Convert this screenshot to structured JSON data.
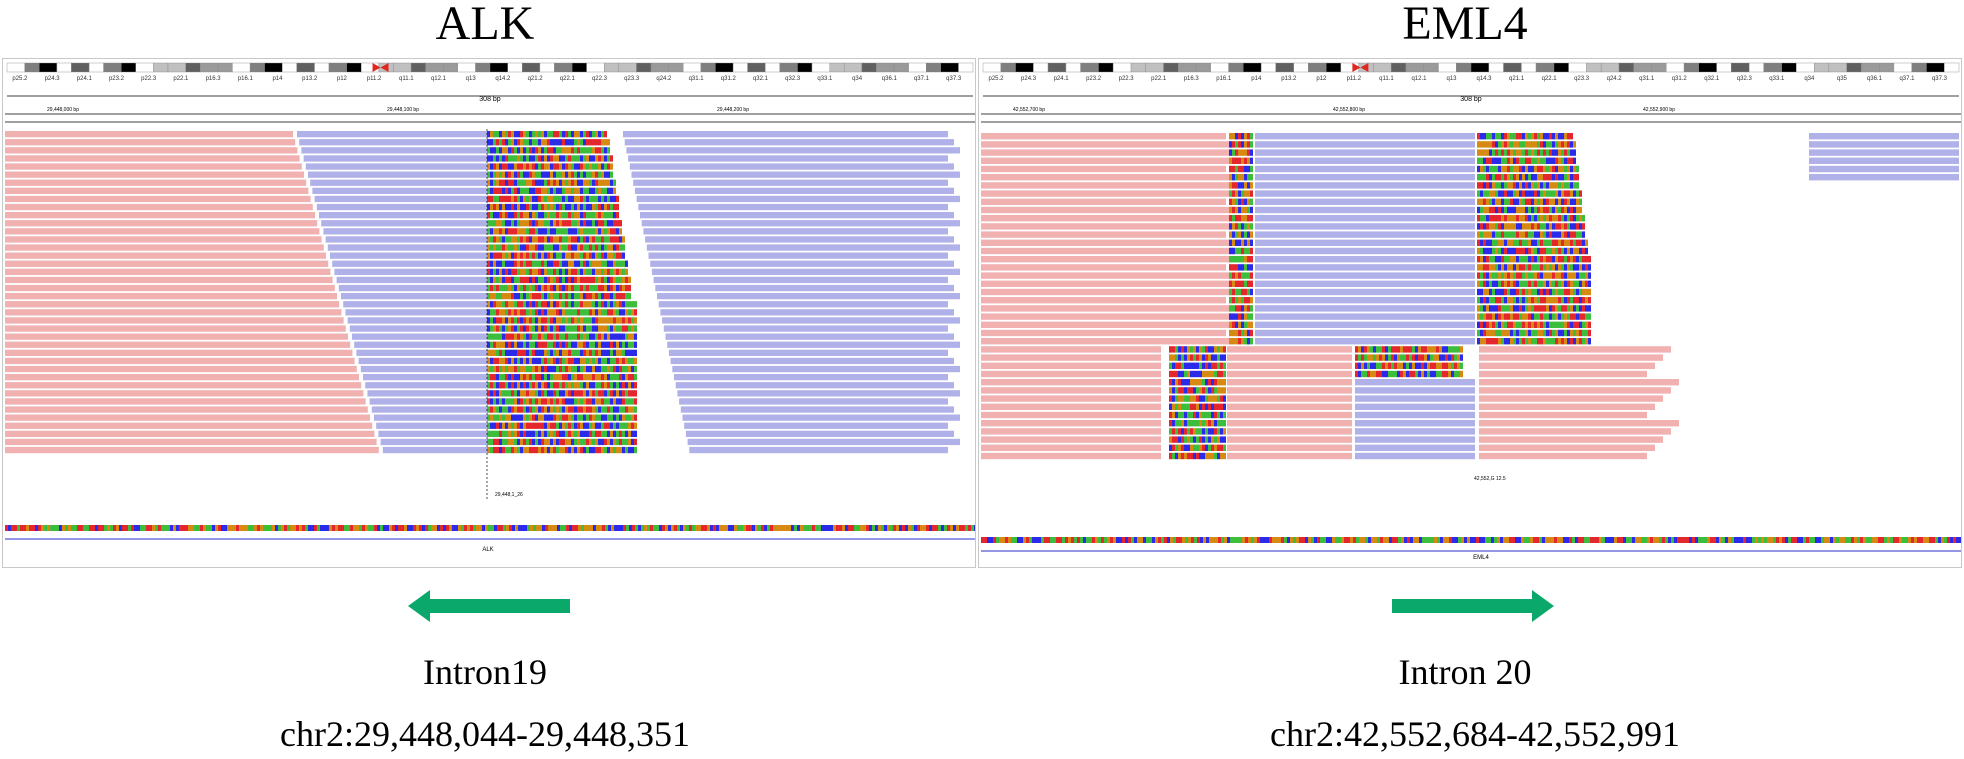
{
  "colors": {
    "forward_read": "#f1b1b1",
    "reverse_read": "#b1b1ea",
    "base_A": "#3cbd3c",
    "base_C": "#2a2ae8",
    "base_G": "#d68a12",
    "base_T": "#e3272c",
    "arrow": "#0aa86a",
    "centromere": "#e0271f"
  },
  "panels": [
    {
      "gene": "ALK",
      "ideogram_bands": [
        "p25.2",
        "p24.3",
        "p24.1",
        "p23.2",
        "p22.3",
        "p22.1",
        "p16.3",
        "p16.1",
        "p14",
        "p13.2",
        "p12",
        "p11.2",
        "q11.1",
        "q12.1",
        "q13",
        "q14.2",
        "q21.2",
        "q22.1",
        "q22.3",
        "q23.3",
        "q24.2",
        "q31.1",
        "q31.2",
        "q32.1",
        "q32.3",
        "q33.1",
        "q34",
        "q36.1",
        "q37.1",
        "q37.3"
      ],
      "span": "308 bp",
      "coords": [
        "29,448,000 bp",
        "29,448,100 bp",
        "29,448,200 bp"
      ],
      "feature": "ALK",
      "soft_clip_label": "29,448,1_26",
      "intron": "Intron19",
      "locus": "chr2:29,448,044-29,448,351",
      "arrow_direction": "left"
    },
    {
      "gene": "EML4",
      "ideogram_bands": [
        "p25.2",
        "p24.3",
        "p24.1",
        "p23.2",
        "p22.3",
        "p22.1",
        "p16.3",
        "p16.1",
        "p14",
        "p13.2",
        "p12",
        "p11.2",
        "q11.1",
        "q12.1",
        "q13",
        "q14.3",
        "q21.1",
        "q22.1",
        "q23.3",
        "q24.2",
        "q31.1",
        "q31.2",
        "q32.1",
        "q32.3",
        "q33.1",
        "q34",
        "q35",
        "q36.1",
        "q37.1",
        "q37.3"
      ],
      "span": "308 bp",
      "coords": [
        "42,552,700 bp",
        "42,552,800 bp",
        "42,552,900 bp"
      ],
      "feature": "EML4",
      "soft_clip_label": "42,552,G 12.5",
      "intron": "Intron 20",
      "locus": "chr2:42,552,684-42,552,991",
      "arrow_direction": "right"
    }
  ]
}
